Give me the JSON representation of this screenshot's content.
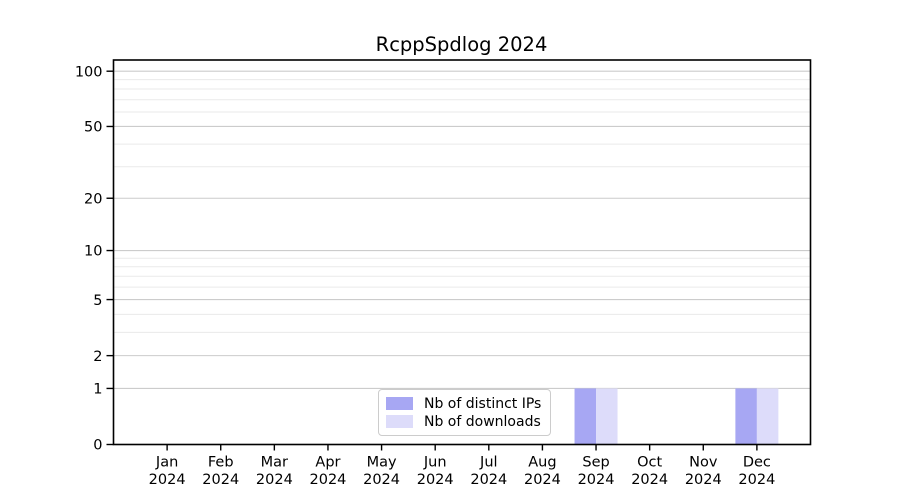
{
  "chart_data": {
    "type": "bar",
    "title": "RcppSpdlog 2024",
    "categories": [
      "Jan",
      "Feb",
      "Mar",
      "Apr",
      "May",
      "Jun",
      "Jul",
      "Aug",
      "Sep",
      "Oct",
      "Nov",
      "Dec"
    ],
    "category_year": "2024",
    "series": [
      {
        "name": "Nb of distinct IPs",
        "color": "#a7a7f3",
        "values": [
          0,
          0,
          0,
          0,
          0,
          0,
          0,
          0,
          1,
          0,
          0,
          1
        ]
      },
      {
        "name": "Nb of downloads",
        "color": "#dddcfa",
        "values": [
          0,
          0,
          0,
          0,
          0,
          0,
          0,
          0,
          1,
          0,
          0,
          1
        ]
      }
    ],
    "y_scale": "log1p",
    "ylim": [
      0,
      115
    ],
    "y_ticks": [
      0,
      1,
      2,
      5,
      10,
      20,
      50,
      100
    ],
    "y_minor_gridlines": [
      3,
      4,
      6,
      7,
      8,
      9,
      30,
      40,
      60,
      70,
      80,
      90
    ],
    "grid": true,
    "xlabel": "",
    "ylabel": "",
    "legend": {
      "position": "lower center",
      "labels": [
        "Nb of distinct IPs",
        "Nb of downloads"
      ]
    },
    "colors": {
      "background": "#ffffff",
      "spine": "#000000",
      "tick": "#000000",
      "text": "#000000",
      "grid_major": "#cccccc",
      "grid_minor": "#eaeaea",
      "legend_border": "#cccccc"
    }
  }
}
